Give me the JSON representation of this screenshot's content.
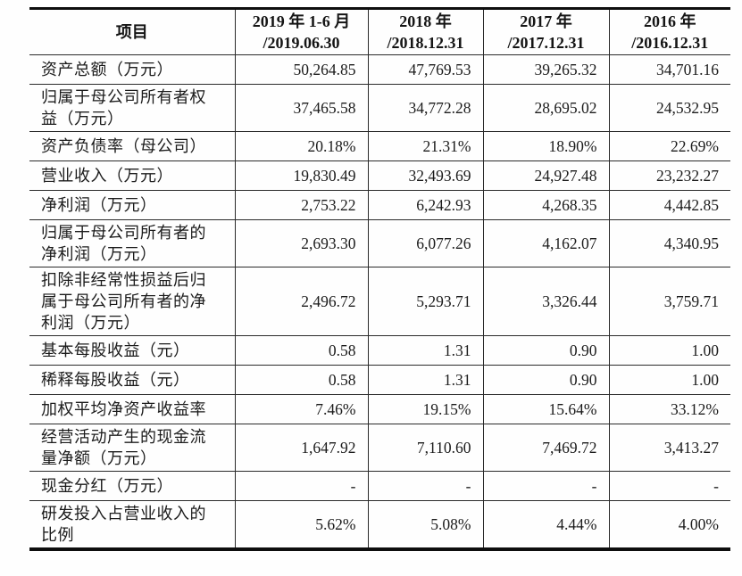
{
  "table": {
    "header": {
      "item_label": "项目",
      "periods": [
        {
          "line1": "2019 年 1-6 月",
          "line2": "/2019.06.30"
        },
        {
          "line1": "2018 年",
          "line2": "/2018.12.31"
        },
        {
          "line1": "2017 年",
          "line2": "/2017.12.31"
        },
        {
          "line1": "2016 年",
          "line2": "/2016.12.31"
        }
      ]
    },
    "rows": [
      {
        "label": "资产总额（万元）",
        "values": [
          "50,264.85",
          "47,769.53",
          "39,265.32",
          "34,701.16"
        ]
      },
      {
        "label": "归属于母公司所有者权益（万元）",
        "values": [
          "37,465.58",
          "34,772.28",
          "28,695.02",
          "24,532.95"
        ]
      },
      {
        "label": "资产负债率（母公司）",
        "values": [
          "20.18%",
          "21.31%",
          "18.90%",
          "22.69%"
        ]
      },
      {
        "label": "营业收入（万元）",
        "values": [
          "19,830.49",
          "32,493.69",
          "24,927.48",
          "23,232.27"
        ]
      },
      {
        "label": "净利润（万元）",
        "values": [
          "2,753.22",
          "6,242.93",
          "4,268.35",
          "4,442.85"
        ]
      },
      {
        "label": "归属于母公司所有者的净利润（万元）",
        "values": [
          "2,693.30",
          "6,077.26",
          "4,162.07",
          "4,340.95"
        ]
      },
      {
        "label": "扣除非经常性损益后归属于母公司所有者的净利润（万元）",
        "values": [
          "2,496.72",
          "5,293.71",
          "3,326.44",
          "3,759.71"
        ]
      },
      {
        "label": "基本每股收益（元）",
        "values": [
          "0.58",
          "1.31",
          "0.90",
          "1.00"
        ]
      },
      {
        "label": "稀释每股收益（元）",
        "values": [
          "0.58",
          "1.31",
          "0.90",
          "1.00"
        ]
      },
      {
        "label": "加权平均净资产收益率",
        "values": [
          "7.46%",
          "19.15%",
          "15.64%",
          "33.12%"
        ]
      },
      {
        "label": "经营活动产生的现金流量净额（万元）",
        "values": [
          "1,647.92",
          "7,110.60",
          "7,469.72",
          "3,413.27"
        ]
      },
      {
        "label": "现金分红（万元）",
        "values": [
          "-",
          "-",
          "-",
          "-"
        ]
      },
      {
        "label": "研发投入占营业收入的比例",
        "values": [
          "5.62%",
          "5.08%",
          "4.44%",
          "4.00%"
        ]
      }
    ],
    "colors": {
      "text": "#1b1b1b",
      "rule_thin": "#2a2a2a",
      "rule_thick": "#0e0e0e",
      "background": "#fefefe"
    }
  }
}
